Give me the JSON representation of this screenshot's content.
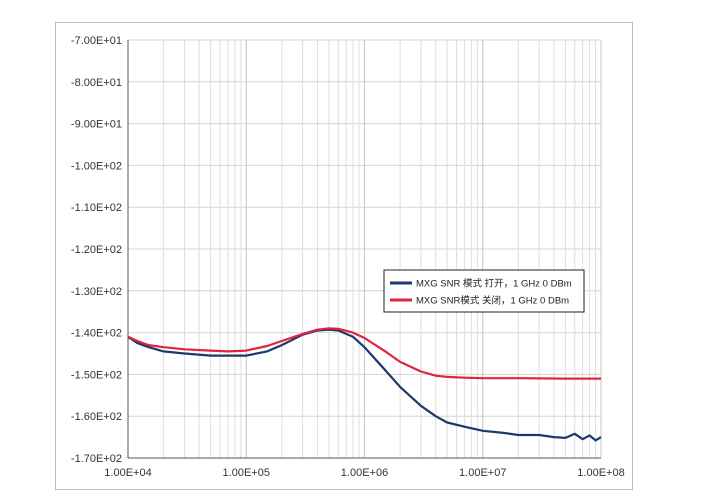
{
  "chart_data": {
    "type": "line",
    "x_scale": "log",
    "xlim": [
      10000,
      100000000
    ],
    "ylim": [
      -170,
      -70
    ],
    "grid": true,
    "legend_position": "right, inside plot",
    "x_ticks": [
      {
        "value": 10000,
        "label": "1.00E+04"
      },
      {
        "value": 100000,
        "label": "1.00E+05"
      },
      {
        "value": 1000000,
        "label": "1.00E+06"
      },
      {
        "value": 10000000,
        "label": "1.00E+07"
      },
      {
        "value": 100000000,
        "label": "1.00E+08"
      }
    ],
    "y_ticks": [
      {
        "value": -70,
        "label": "-7.00E+01"
      },
      {
        "value": -80,
        "label": "-8.00E+01"
      },
      {
        "value": -90,
        "label": "-9.00E+01"
      },
      {
        "value": -100,
        "label": "-1.00E+02"
      },
      {
        "value": -110,
        "label": "-1.10E+02"
      },
      {
        "value": -120,
        "label": "-1.20E+02"
      },
      {
        "value": -130,
        "label": "-1.30E+02"
      },
      {
        "value": -140,
        "label": "-1.40E+02"
      },
      {
        "value": -150,
        "label": "-1.50E+02"
      },
      {
        "value": -160,
        "label": "-1.60E+02"
      },
      {
        "value": -170,
        "label": "-1.70E+02"
      }
    ],
    "series": [
      {
        "name": "MXG SNR 模式 打开，1 GHz 0 DBm",
        "color": "#1b3a6b",
        "points": [
          [
            10000,
            -141
          ],
          [
            12000,
            -142.5
          ],
          [
            15000,
            -143.5
          ],
          [
            20000,
            -144.5
          ],
          [
            30000,
            -145
          ],
          [
            50000,
            -145.5
          ],
          [
            70000,
            -145.5
          ],
          [
            100000,
            -145.5
          ],
          [
            150000,
            -144.5
          ],
          [
            200000,
            -143
          ],
          [
            300000,
            -140.5
          ],
          [
            400000,
            -139.5
          ],
          [
            500000,
            -139.3
          ],
          [
            600000,
            -139.5
          ],
          [
            800000,
            -141
          ],
          [
            1000000,
            -143.5
          ],
          [
            1500000,
            -149
          ],
          [
            2000000,
            -153
          ],
          [
            3000000,
            -157.5
          ],
          [
            4000000,
            -160
          ],
          [
            5000000,
            -161.5
          ],
          [
            7000000,
            -162.5
          ],
          [
            10000000,
            -163.5
          ],
          [
            15000000,
            -164
          ],
          [
            20000000,
            -164.5
          ],
          [
            30000000,
            -164.5
          ],
          [
            40000000,
            -165
          ],
          [
            50000000,
            -165.2
          ],
          [
            60000000,
            -164.2
          ],
          [
            70000000,
            -165.5
          ],
          [
            80000000,
            -164.6
          ],
          [
            90000000,
            -165.8
          ],
          [
            100000000,
            -165
          ]
        ]
      },
      {
        "name": "MXG SNR模式 关闭，1 GHz 0 DBm",
        "color": "#e0233e",
        "points": [
          [
            10000,
            -141
          ],
          [
            12000,
            -142
          ],
          [
            15000,
            -143
          ],
          [
            20000,
            -143.5
          ],
          [
            30000,
            -144
          ],
          [
            50000,
            -144.3
          ],
          [
            70000,
            -144.5
          ],
          [
            100000,
            -144.3
          ],
          [
            150000,
            -143.2
          ],
          [
            200000,
            -142
          ],
          [
            300000,
            -140.3
          ],
          [
            400000,
            -139.3
          ],
          [
            500000,
            -139
          ],
          [
            600000,
            -139.1
          ],
          [
            800000,
            -140
          ],
          [
            1000000,
            -141.3
          ],
          [
            1500000,
            -144.5
          ],
          [
            2000000,
            -147
          ],
          [
            3000000,
            -149.3
          ],
          [
            4000000,
            -150.3
          ],
          [
            5000000,
            -150.6
          ],
          [
            7000000,
            -150.8
          ],
          [
            10000000,
            -150.9
          ],
          [
            20000000,
            -150.9
          ],
          [
            50000000,
            -151
          ],
          [
            100000000,
            -151
          ]
        ]
      }
    ]
  }
}
